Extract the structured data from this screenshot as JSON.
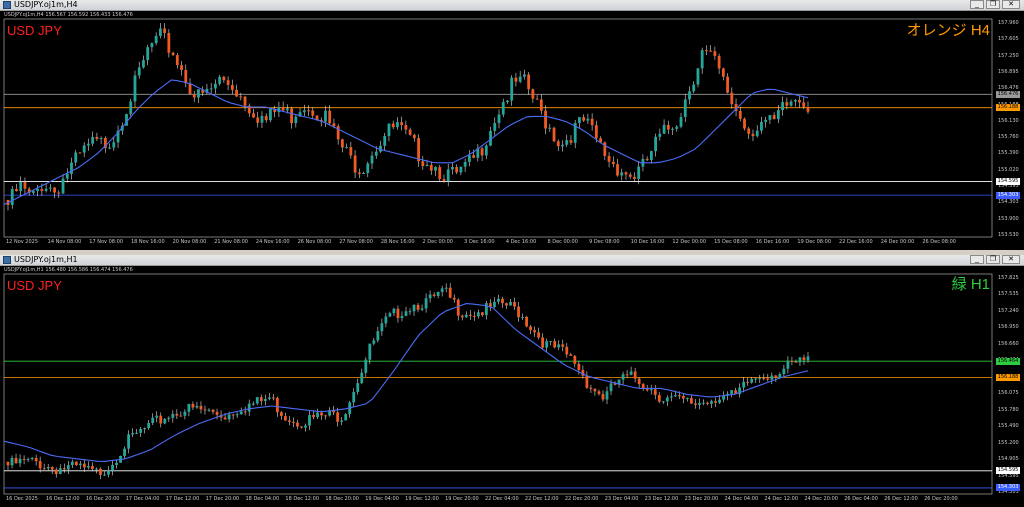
{
  "windows": [
    {
      "title": "USDJPY.oj1m,H4",
      "info": "USDJPY.oj1m,H4  156.567 156.592 156.433 156.476",
      "symbol_label": "USD JPY",
      "tag_label": "オレンジ H4",
      "tag_color": "#ff9900",
      "price_labels": [
        "157.960",
        "157.605",
        "157.250",
        "156.895",
        "156.476",
        "156.188",
        "156.130",
        "155.760",
        "155.390",
        "155.020",
        "154.595",
        "154.303",
        "153.900",
        "153.530"
      ],
      "time_labels": [
        "12 Nov 2025",
        "14 Nov 08:00",
        "17 Nov 08:00",
        "18 Nov 16:00",
        "20 Nov 08:00",
        "21 Nov 08:00",
        "24 Nov 16:00",
        "26 Nov 08:00",
        "27 Nov 08:00",
        "28 Nov 16:00",
        "2 Dec 00:00",
        "3 Dec 16:00",
        "4 Dec 16:00",
        "8 Dec 00:00",
        "9 Dec 08:00",
        "10 Dec 16:00",
        "12 Dec 00:00",
        "15 Dec 08:00",
        "16 Dec 16:00",
        "19 Dec 08:00",
        "22 Dec 16:00",
        "24 Dec 00:00",
        "26 Dec 08:00"
      ],
      "hlines": [
        {
          "price": 156.476,
          "color": "#9a9a9a",
          "label": "156.476",
          "label_bg": "#9a9a9a",
          "label_fg": "#000"
        },
        {
          "price": 156.188,
          "color": "#ff9900",
          "label": "156.188",
          "label_bg": "#ff9900",
          "label_fg": "#000"
        },
        {
          "price": 154.595,
          "color": "#ffffff",
          "label": "154.595",
          "label_bg": "#ffffff",
          "label_fg": "#000"
        },
        {
          "price": 154.303,
          "color": "#3a5bff",
          "label": "154.303",
          "label_bg": "#3a5bff",
          "label_fg": "#fff"
        }
      ]
    },
    {
      "title": "USDJPY.oj1m,H1",
      "info": "USDJPY.oj1m,H1  156.480 156.586 156.474 156.476",
      "symbol_label": "USD JPY",
      "tag_label": "緑 H1",
      "tag_color": "#2ecc40",
      "price_labels": [
        "157.825",
        "157.535",
        "157.240",
        "156.950",
        "156.660",
        "156.464",
        "156.188",
        "156.075",
        "155.780",
        "155.490",
        "155.200",
        "154.905",
        "154.595",
        "154.303"
      ],
      "time_labels": [
        "16 Dec 2025",
        "16 Dec 12:00",
        "16 Dec 20:00",
        "17 Dec 04:00",
        "17 Dec 12:00",
        "17 Dec 20:00",
        "18 Dec 04:00",
        "18 Dec 12:00",
        "18 Dec 20:00",
        "19 Dec 04:00",
        "19 Dec 12:00",
        "19 Dec 20:00",
        "22 Dec 04:00",
        "22 Dec 12:00",
        "22 Dec 20:00",
        "23 Dec 04:00",
        "23 Dec 12:00",
        "23 Dec 20:00",
        "24 Dec 04:00",
        "24 Dec 12:00",
        "24 Dec 20:00",
        "26 Dec 04:00",
        "26 Dec 12:00",
        "26 Dec 20:00"
      ],
      "hlines": [
        {
          "price": 156.464,
          "color": "#2ecc40",
          "label": "156.464",
          "label_bg": "#2ecc40",
          "label_fg": "#000"
        },
        {
          "price": 156.188,
          "color": "#ff9900",
          "label": "156.188",
          "label_bg": "#ff9900",
          "label_fg": "#000"
        },
        {
          "price": 154.595,
          "color": "#ffffff",
          "label": "154.595",
          "label_bg": "#ffffff",
          "label_fg": "#000"
        },
        {
          "price": 154.303,
          "color": "#3a5bff",
          "label": "154.303",
          "label_bg": "#3a5bff",
          "label_fg": "#fff"
        }
      ]
    }
  ],
  "chart_data": [
    {
      "type": "candlestick",
      "title": "USDJPY.oj1m,H4",
      "ylim": [
        153.4,
        158.1
      ],
      "series": [
        {
          "name": "price",
          "close_path": [
            154.2,
            154.6,
            154.3,
            154.7,
            154.5,
            154.9,
            155.2,
            155.5,
            155.5,
            155.7,
            156.3,
            156.9,
            157.6,
            157.8,
            157.5,
            157.0,
            156.5,
            156.6,
            156.9,
            156.8,
            156.5,
            156.2,
            156.0,
            156.3,
            156.1,
            156.4,
            156.3,
            156.1,
            155.6,
            155.2,
            155.0,
            155.4,
            155.7,
            155.9,
            155.6,
            155.3,
            155.1,
            154.9,
            154.8,
            155.0,
            155.3,
            155.9,
            156.4,
            156.8,
            156.8,
            156.3,
            155.9,
            155.5,
            155.8,
            156.0,
            155.6,
            155.2,
            155.0,
            154.8,
            155.0,
            155.5,
            155.8,
            156.1,
            156.8,
            157.5,
            157.3,
            156.7,
            156.2,
            155.8,
            156.0,
            155.9,
            156.3,
            156.5,
            156.4
          ]
        },
        {
          "name": "moving-average",
          "close_path": [
            154.1,
            154.3,
            154.5,
            154.7,
            154.9,
            155.2,
            155.6,
            156.1,
            156.5,
            156.8,
            156.7,
            156.5,
            156.3,
            156.2,
            156.2,
            156.1,
            156.0,
            155.9,
            155.7,
            155.5,
            155.3,
            155.2,
            155.1,
            155.0,
            155.0,
            155.2,
            155.5,
            155.8,
            156.0,
            156.0,
            155.9,
            155.7,
            155.4,
            155.2,
            155.0,
            155.0,
            155.1,
            155.3,
            155.7,
            156.1,
            156.5,
            156.6,
            156.5,
            156.4
          ]
        }
      ],
      "hlines": [
        156.476,
        156.188,
        154.595,
        154.303
      ]
    },
    {
      "type": "candlestick",
      "title": "USDJPY.oj1m,H1",
      "ylim": [
        154.2,
        157.95
      ],
      "series": [
        {
          "name": "price",
          "close_path": [
            154.75,
            154.8,
            154.8,
            154.7,
            154.7,
            154.7,
            154.6,
            154.75,
            155.1,
            155.3,
            155.45,
            155.6,
            155.7,
            155.7,
            155.65,
            155.6,
            155.75,
            155.8,
            155.9,
            155.6,
            155.5,
            155.55,
            155.6,
            155.6,
            156.2,
            156.8,
            157.2,
            157.4,
            157.5,
            157.55,
            157.7,
            157.4,
            157.35,
            157.4,
            157.5,
            157.4,
            157.1,
            156.8,
            156.7,
            156.5,
            156.1,
            155.9,
            156.2,
            156.25,
            156.1,
            155.9,
            155.85,
            155.8,
            155.85,
            155.95,
            155.9,
            156.2,
            156.3,
            156.35,
            156.45,
            156.55
          ]
        },
        {
          "name": "moving-average",
          "close_path": [
            155.1,
            155.0,
            154.85,
            154.8,
            154.75,
            154.8,
            154.95,
            155.2,
            155.4,
            155.55,
            155.65,
            155.7,
            155.65,
            155.6,
            155.65,
            155.75,
            156.3,
            156.9,
            157.3,
            157.45,
            157.4,
            157.0,
            156.7,
            156.4,
            156.2,
            156.1,
            156.0,
            156.0,
            155.9,
            155.85,
            155.9,
            156.05,
            156.2,
            156.3
          ]
        }
      ],
      "hlines": [
        156.464,
        156.188,
        154.595,
        154.303
      ]
    }
  ]
}
